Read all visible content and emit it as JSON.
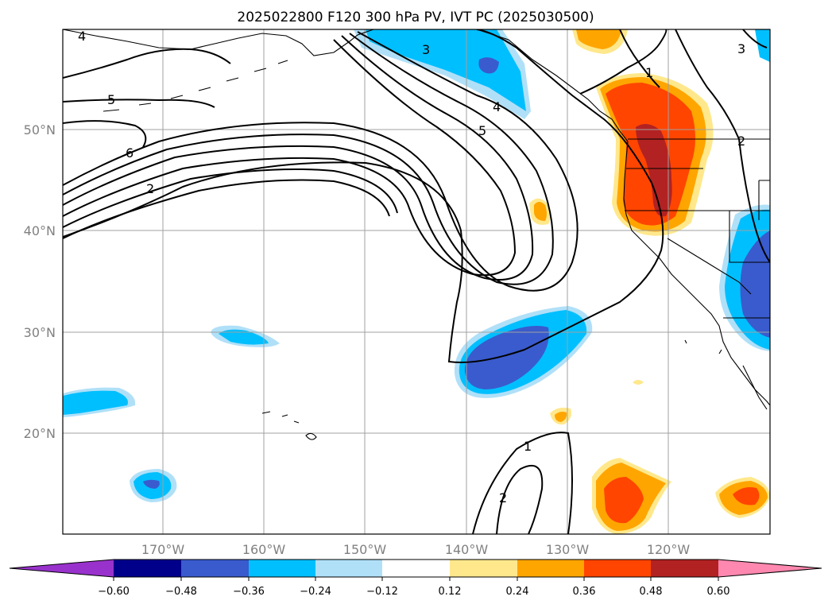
{
  "title": "2025022800 F120 300 hPa PV, IVT PC (2025030500)",
  "lat_labels": [
    "50°N",
    "40°N",
    "30°N",
    "20°N"
  ],
  "lon_labels": [
    "170°W",
    "160°W",
    "150°W",
    "140°W",
    "130°W",
    "120°W"
  ],
  "colorbar": {
    "tick_labels": [
      "−0.60",
      "−0.48",
      "−0.36",
      "−0.24",
      "−0.12",
      "0.12",
      "0.24",
      "0.36",
      "0.48",
      "0.60"
    ],
    "colors": {
      "below_min": "#9932CC",
      "neg_060_048": "#00008B",
      "neg_048_036": "#3A5BCD",
      "neg_036_024": "#00BFFF",
      "neg_024_012": "#B0E0F8",
      "neutral": "#FFFFFF",
      "pos_012_024": "#FFE88C",
      "pos_024_036": "#FFA500",
      "pos_036_048": "#FF4500",
      "pos_048_060": "#B22222",
      "above_max": "#FF88B0"
    }
  },
  "contour_labels": [
    "4",
    "5",
    "6",
    "2",
    "3",
    "4",
    "5",
    "1",
    "2",
    "3",
    "1",
    "2"
  ]
}
